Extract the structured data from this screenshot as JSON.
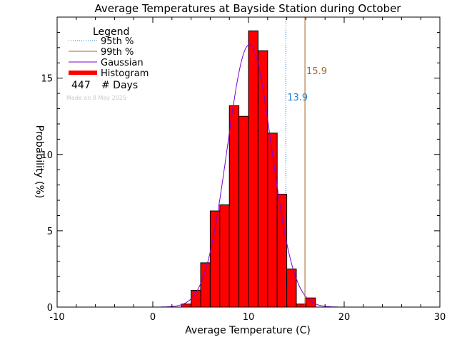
{
  "chart_data": {
    "type": "bar",
    "title": "Average Temperatures at Bayside Station during October",
    "xlabel": "Average Temperature (C)",
    "ylabel": "Probability (%)",
    "xlim": [
      -10,
      30
    ],
    "ylim": [
      0,
      19
    ],
    "x_ticks": [
      -10,
      0,
      10,
      20,
      30
    ],
    "y_ticks": [
      0,
      5,
      10,
      15
    ],
    "bin_width": 1,
    "histogram": [
      {
        "x0": 3,
        "x1": 4,
        "value": 0.2
      },
      {
        "x0": 4,
        "x1": 5,
        "value": 1.1
      },
      {
        "x0": 5,
        "x1": 6,
        "value": 2.9
      },
      {
        "x0": 6,
        "x1": 7,
        "value": 6.3
      },
      {
        "x0": 7,
        "x1": 8,
        "value": 6.7
      },
      {
        "x0": 8,
        "x1": 9,
        "value": 13.2
      },
      {
        "x0": 9,
        "x1": 10,
        "value": 12.5
      },
      {
        "x0": 10,
        "x1": 11,
        "value": 18.1
      },
      {
        "x0": 11,
        "x1": 12,
        "value": 16.8
      },
      {
        "x0": 12,
        "x1": 13,
        "value": 11.4
      },
      {
        "x0": 13,
        "x1": 14,
        "value": 7.4
      },
      {
        "x0": 14,
        "x1": 15,
        "value": 2.5
      },
      {
        "x0": 15,
        "x1": 16,
        "value": 0.2
      },
      {
        "x0": 16,
        "x1": 17,
        "value": 0.6
      }
    ],
    "gaussian": {
      "mean": 10.1,
      "sigma": 2.32,
      "peak": 17.2,
      "color": "#7b00d4"
    },
    "percentiles": [
      {
        "name": "95th %",
        "value": 13.9,
        "label": "13.9",
        "color": "#1e7fd8",
        "style": "dotted"
      },
      {
        "name": "99th %",
        "value": 15.9,
        "label": "15.9",
        "color": "#a5642a",
        "style": "solid"
      }
    ],
    "colors": {
      "histogram": "#ff0000",
      "gaussian": "#7b00d4"
    },
    "legend": {
      "title": "Legend",
      "placement": "top-left",
      "entries": [
        {
          "label": "95th %",
          "color": "#1e7fd8",
          "style": "dotted"
        },
        {
          "label": "99th %",
          "color": "#a5642a",
          "style": "solid"
        },
        {
          "label": "Gaussian",
          "color": "#7b00d4",
          "style": "solid"
        },
        {
          "label": "Histogram",
          "color": "#ff0000",
          "style": "thick"
        }
      ],
      "count_value": "447",
      "count_label": "# Days"
    },
    "footnote": "Made on 8 May 2025"
  }
}
